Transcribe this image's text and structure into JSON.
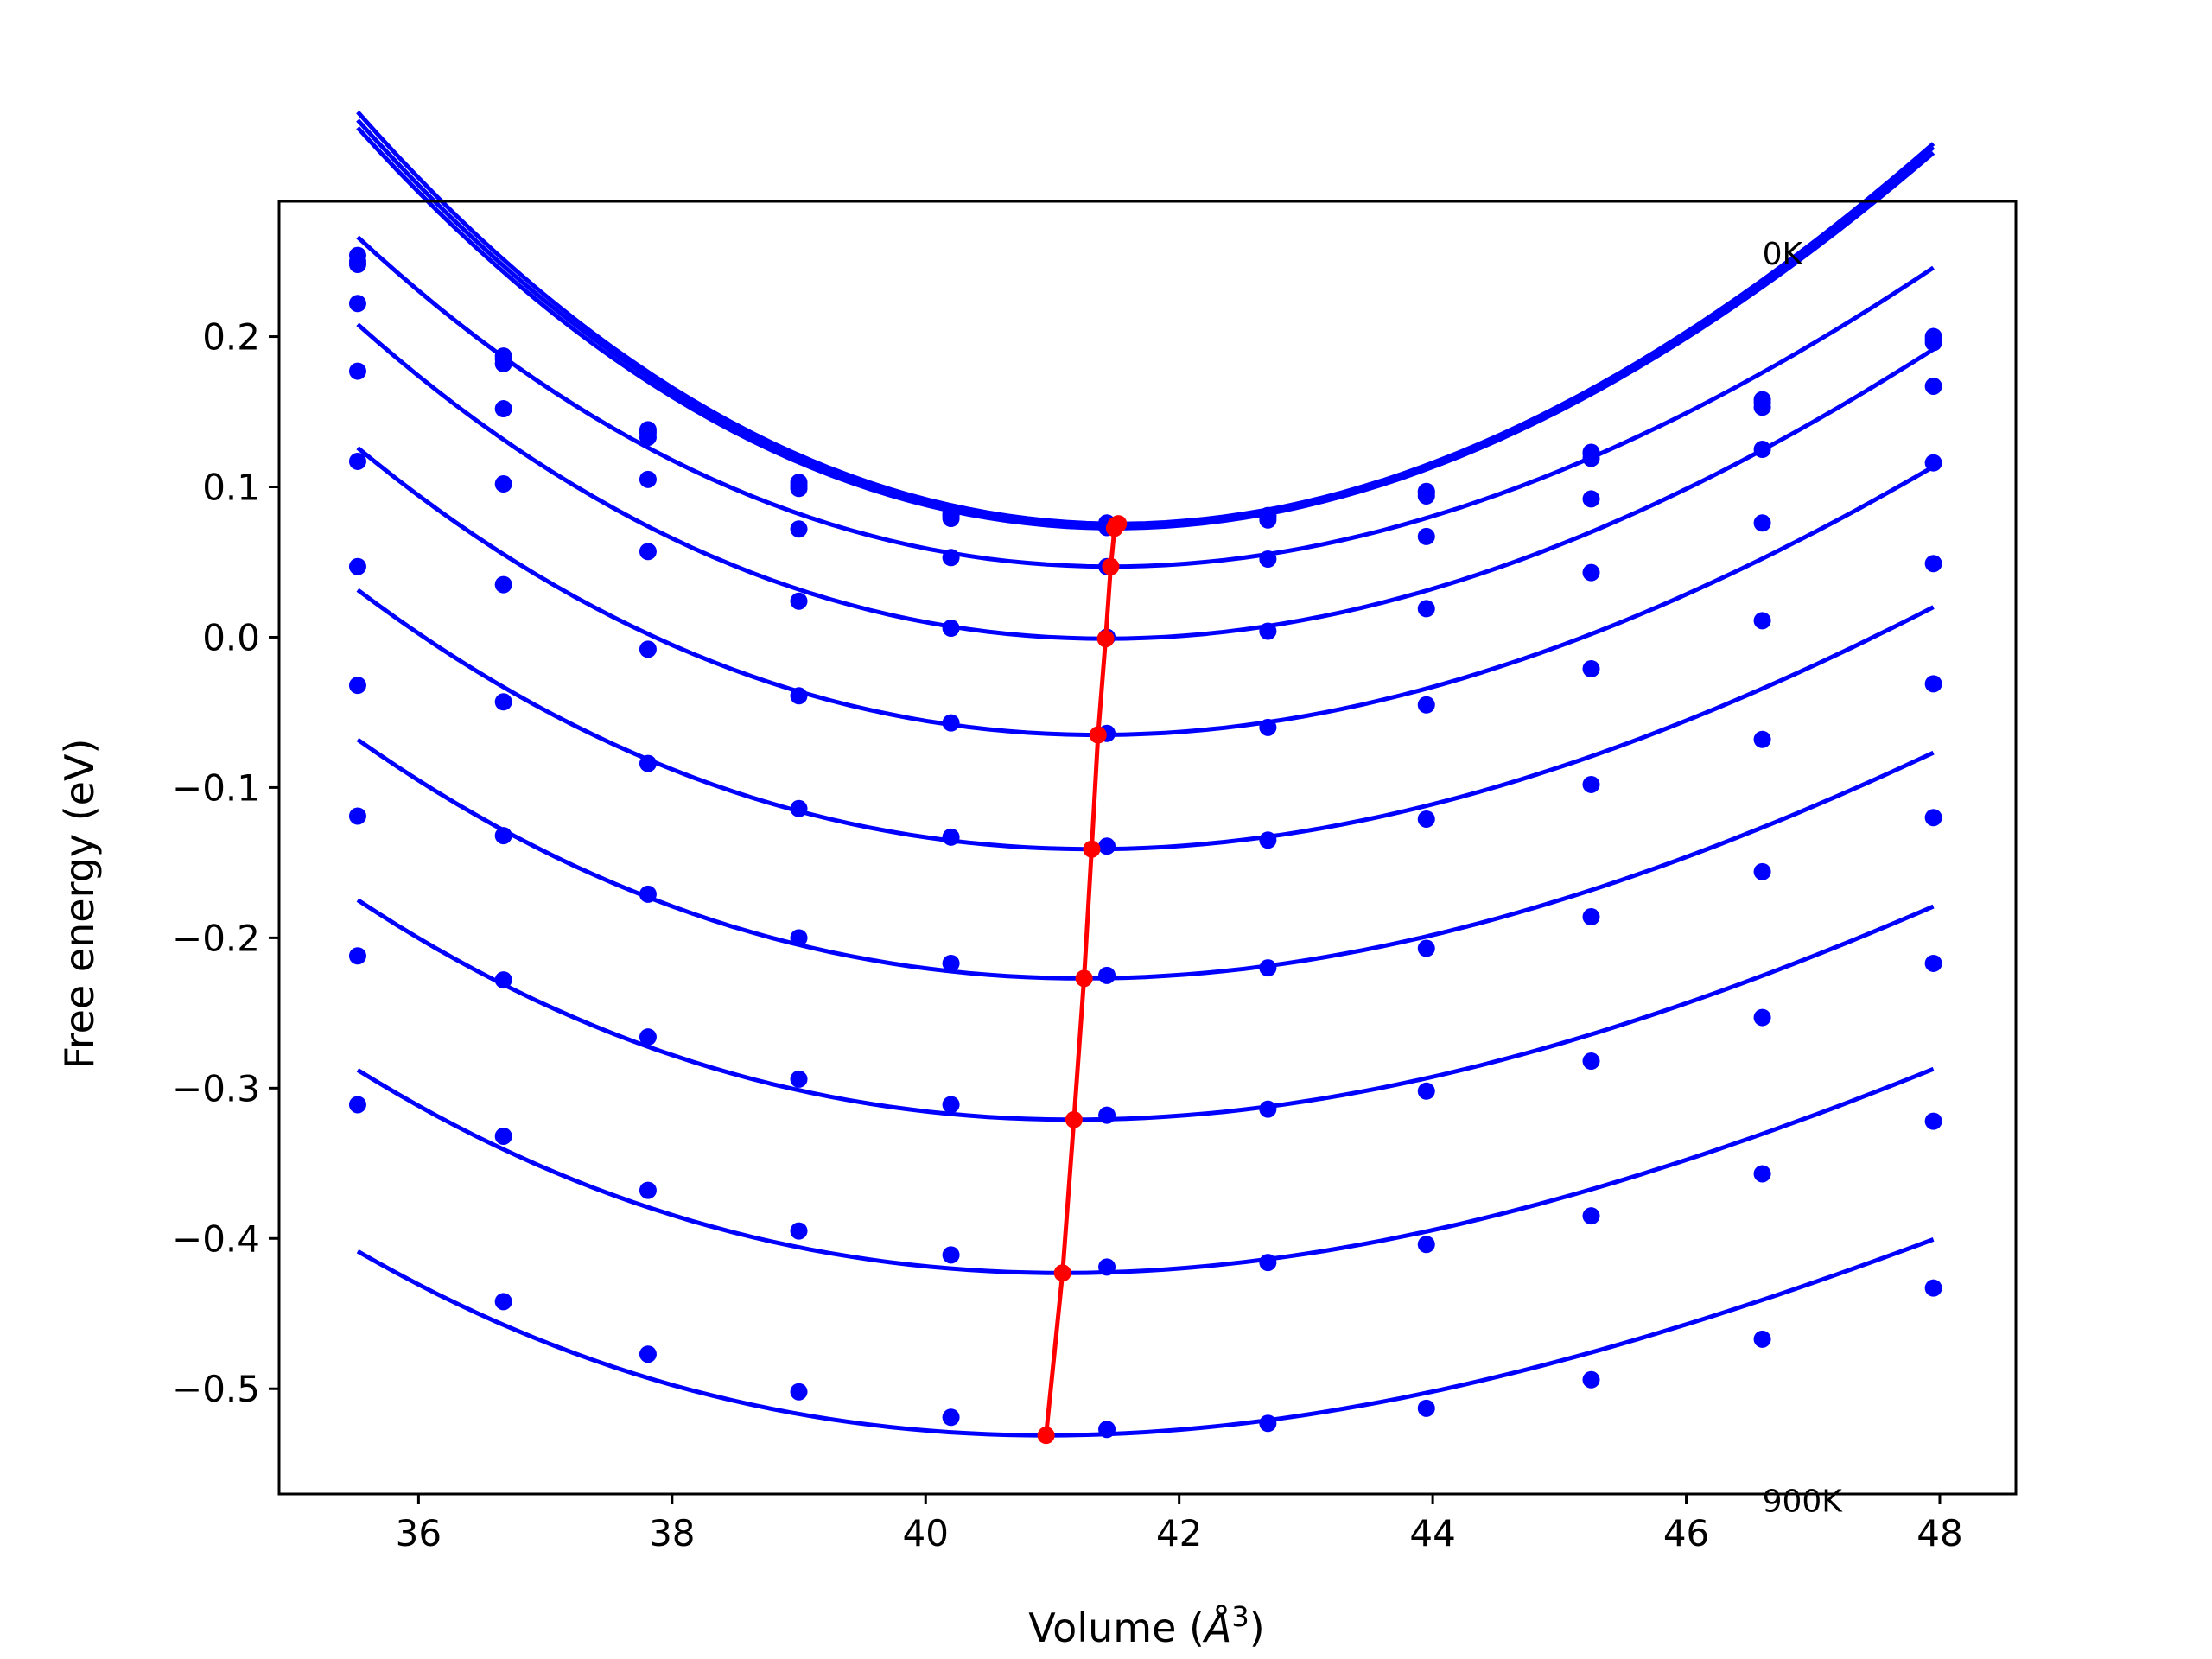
{
  "chart_data": {
    "type": "scatter",
    "xlabel": "Volume (",
    "xlabel_unit": "Å",
    "xlabel_sup": "3",
    "xlabel_close": ")",
    "ylabel": "Free energy (eV)",
    "xlim": [
      34.9,
      48.6
    ],
    "ylim": [
      -0.57,
      0.29
    ],
    "x_ticks": [
      36,
      38,
      40,
      42,
      44,
      46,
      48
    ],
    "y_ticks": [
      -0.5,
      -0.4,
      -0.3,
      -0.2,
      -0.1,
      0.0,
      0.1,
      0.2
    ],
    "x_tick_labels": [
      "36",
      "38",
      "40",
      "42",
      "44",
      "46",
      "48"
    ],
    "y_tick_labels": [
      "−0.5",
      "−0.4",
      "−0.3",
      "−0.2",
      "−0.1",
      "0.0",
      "0.1",
      "0.2"
    ],
    "grid": false,
    "annotations": [
      {
        "text": "0K",
        "x": 46.6,
        "y": 0.255
      },
      {
        "text": "900K",
        "x": 46.6,
        "y": -0.575
      }
    ],
    "x": [
      35.52,
      36.67,
      37.81,
      39.0,
      40.2,
      41.43,
      42.7,
      43.95,
      45.25,
      46.6,
      47.95
    ],
    "series_color": "#0000ff",
    "min_color": "#ff0000",
    "series": [
      {
        "points": [
          0.254,
          0.187,
          0.138,
          0.103,
          0.082,
          0.076,
          0.081,
          0.097,
          0.123,
          0.158,
          0.2
        ],
        "fit": {
          "a": 0.00689,
          "v0": 41.52,
          "e0": 0.0755
        }
      },
      {
        "points": [
          0.25,
          0.185,
          0.136,
          0.101,
          0.081,
          0.075,
          0.08,
          0.096,
          0.122,
          0.156,
          0.198
        ],
        "fit": {
          "a": 0.00682,
          "v0": 41.5,
          "e0": 0.0745
        }
      },
      {
        "points": [
          0.248,
          0.182,
          0.133,
          0.099,
          0.079,
          0.073,
          0.078,
          0.094,
          0.119,
          0.153,
          0.196
        ],
        "fit": {
          "a": 0.00676,
          "v0": 41.49,
          "e0": 0.0725
        }
      },
      {
        "points": [
          0.222,
          0.152,
          0.105,
          0.072,
          0.053,
          0.047,
          0.052,
          0.067,
          0.092,
          0.125,
          0.167
        ],
        "fit": {
          "a": 0.0055,
          "v0": 41.46,
          "e0": 0.047
        }
      },
      {
        "points": [
          0.177,
          0.102,
          0.057,
          0.024,
          0.006,
          0.0,
          0.004,
          0.019,
          0.043,
          0.076,
          0.116
        ],
        "fit": {
          "a": 0.0053,
          "v0": 41.42,
          "e0": -0.001
        }
      },
      {
        "points": [
          0.117,
          0.035,
          -0.008,
          -0.039,
          -0.057,
          -0.064,
          -0.06,
          -0.045,
          -0.021,
          0.011,
          0.049
        ],
        "fit": {
          "a": 0.0049,
          "v0": 41.36,
          "e0": -0.065
        }
      },
      {
        "points": [
          0.047,
          -0.043,
          -0.084,
          -0.114,
          -0.133,
          -0.139,
          -0.135,
          -0.121,
          -0.098,
          -0.068,
          -0.031
        ],
        "fit": {
          "a": 0.00445,
          "v0": 41.31,
          "e0": -0.141
        }
      },
      {
        "points": [
          -0.032,
          -0.132,
          -0.171,
          -0.2,
          -0.217,
          -0.225,
          -0.22,
          -0.207,
          -0.186,
          -0.156,
          -0.12
        ],
        "fit": {
          "a": 0.00415,
          "v0": 41.25,
          "e0": -0.227
        }
      },
      {
        "points": [
          -0.119,
          -0.228,
          -0.266,
          -0.294,
          -0.311,
          -0.318,
          -0.314,
          -0.302,
          -0.282,
          -0.253,
          -0.217
        ],
        "fit": {
          "a": 0.0039,
          "v0": 41.17,
          "e0": -0.321
        }
      },
      {
        "points": [
          -0.212,
          -0.332,
          -0.368,
          -0.395,
          -0.411,
          -0.419,
          -0.416,
          -0.404,
          -0.385,
          -0.357,
          -0.322
        ],
        "fit": {
          "a": 0.0037,
          "v0": 41.08,
          "e0": -0.423
        }
      },
      {
        "points": [
          -0.311,
          -0.442,
          -0.477,
          -0.502,
          -0.519,
          -0.527,
          -0.523,
          -0.513,
          -0.494,
          -0.467,
          -0.433
        ],
        "fit": {
          "a": 0.0035,
          "v0": 40.95,
          "e0": -0.531
        }
      }
    ],
    "minima": {
      "x": [
        41.52,
        41.5,
        41.49,
        41.46,
        41.42,
        41.36,
        41.31,
        41.25,
        41.17,
        41.08,
        40.95
      ],
      "y": [
        0.0755,
        0.0745,
        0.0725,
        0.047,
        -0.001,
        -0.065,
        -0.141,
        -0.227,
        -0.321,
        -0.423,
        -0.531
      ]
    }
  }
}
